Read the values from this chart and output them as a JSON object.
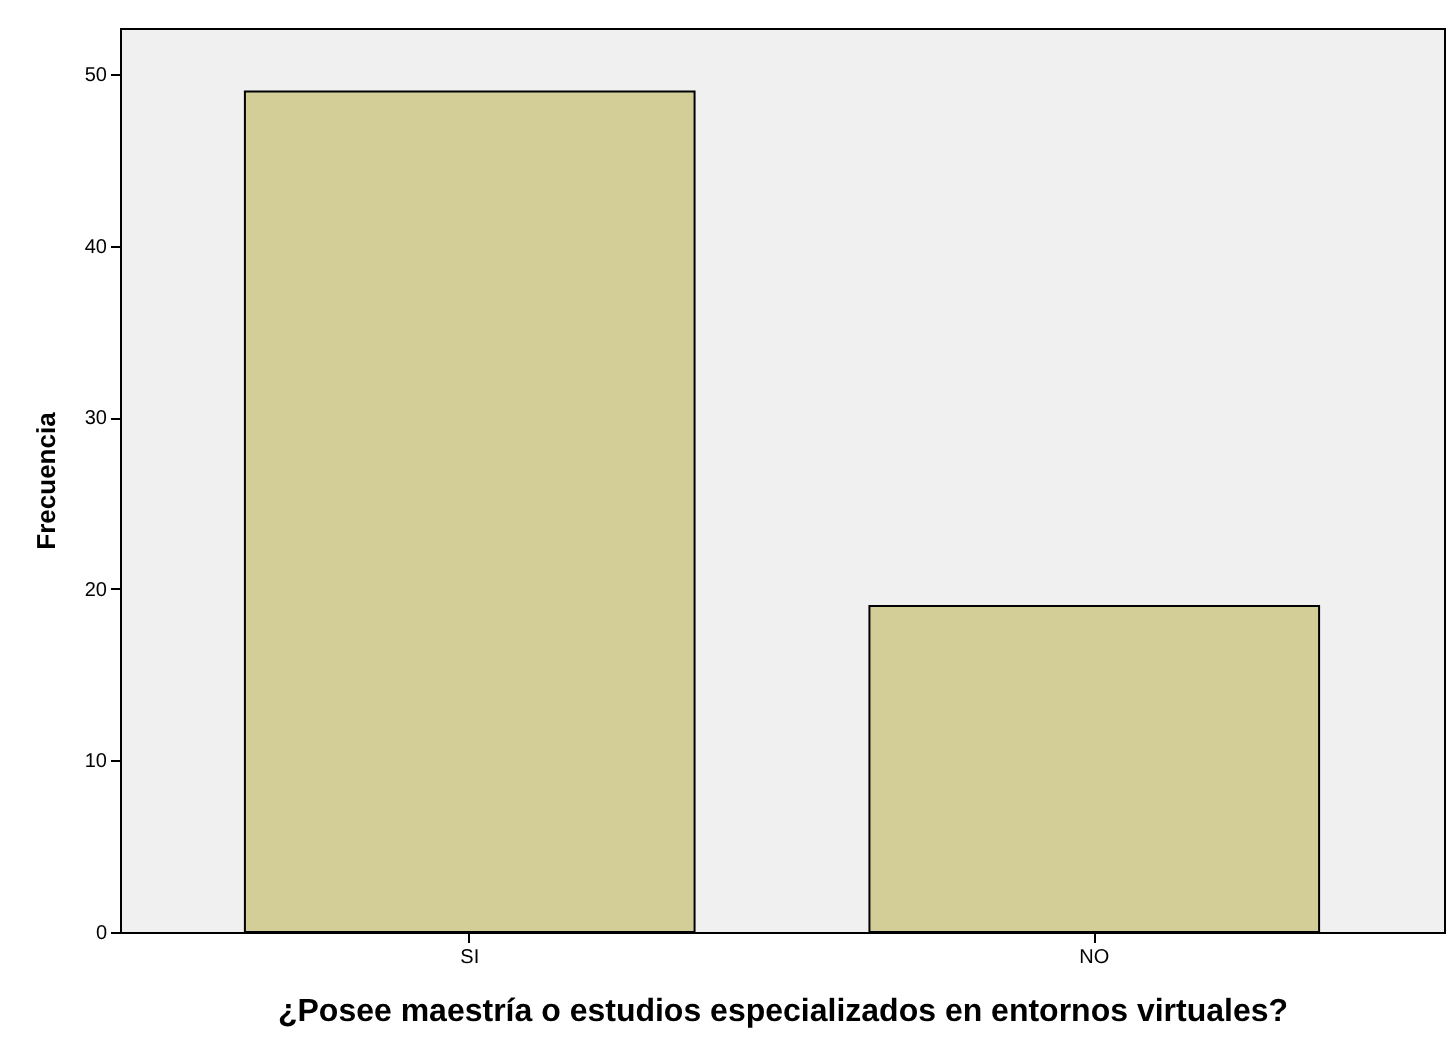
{
  "chart_data": {
    "type": "bar",
    "xlabel": "¿Posee maestría o estudios especializados en entornos virtuales?",
    "ylabel": "Frecuencia",
    "categories": [
      "SI",
      "NO"
    ],
    "values": [
      49,
      19
    ],
    "color": "#d3ce97",
    "ylim": [
      0,
      52.7
    ],
    "yticks": [
      0,
      10,
      20,
      30,
      40,
      50
    ],
    "grid": false
  }
}
